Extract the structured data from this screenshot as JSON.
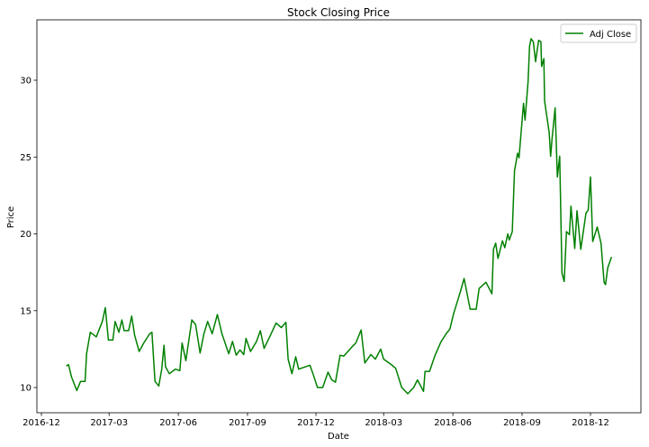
{
  "chart_data": {
    "type": "line",
    "title": "Stock Closing Price",
    "xlabel": "Date",
    "ylabel": "Price",
    "xlim": [
      "2016-11-25",
      "2019-02-06"
    ],
    "ylim": [
      8.36,
      33.93
    ],
    "grid": false,
    "legend_placement": "top-right",
    "x_ticks": [
      {
        "value": "2016-12-01",
        "label": "2016-12"
      },
      {
        "value": "2017-03-01",
        "label": "2017-03"
      },
      {
        "value": "2017-06-01",
        "label": "2017-06"
      },
      {
        "value": "2017-09-01",
        "label": "2017-09"
      },
      {
        "value": "2017-12-01",
        "label": "2017-12"
      },
      {
        "value": "2018-03-01",
        "label": "2018-03"
      },
      {
        "value": "2018-06-01",
        "label": "2018-06"
      },
      {
        "value": "2018-09-01",
        "label": "2018-09"
      },
      {
        "value": "2018-12-01",
        "label": "2018-12"
      }
    ],
    "y_ticks": [
      {
        "value": 10,
        "label": "10"
      },
      {
        "value": 15,
        "label": "15"
      },
      {
        "value": 20,
        "label": "20"
      },
      {
        "value": 25,
        "label": "25"
      },
      {
        "value": 30,
        "label": "30"
      }
    ],
    "series": [
      {
        "name": "Adj Close",
        "color": "#008000",
        "x": [
          "2017-01-03",
          "2017-01-06",
          "2017-01-10",
          "2017-01-17",
          "2017-01-22",
          "2017-01-28",
          "2017-01-30",
          "2017-02-04",
          "2017-02-12",
          "2017-02-20",
          "2017-02-24",
          "2017-02-28",
          "2017-03-06",
          "2017-03-09",
          "2017-03-14",
          "2017-03-18",
          "2017-03-21",
          "2017-03-27",
          "2017-03-31",
          "2017-04-04",
          "2017-04-10",
          "2017-04-16",
          "2017-04-24",
          "2017-04-27",
          "2017-05-01",
          "2017-05-06",
          "2017-05-10",
          "2017-05-13",
          "2017-05-15",
          "2017-05-20",
          "2017-05-28",
          "2017-06-03",
          "2017-06-06",
          "2017-06-11",
          "2017-06-19",
          "2017-06-24",
          "2017-06-30",
          "2017-07-05",
          "2017-07-10",
          "2017-07-16",
          "2017-07-23",
          "2017-07-29",
          "2017-08-07",
          "2017-08-12",
          "2017-08-17",
          "2017-08-22",
          "2017-08-27",
          "2017-08-30",
          "2017-09-05",
          "2017-09-13",
          "2017-09-18",
          "2017-09-23",
          "2017-10-01",
          "2017-10-09",
          "2017-10-16",
          "2017-10-22",
          "2017-10-25",
          "2017-10-30",
          "2017-11-04",
          "2017-11-08",
          "2017-11-23",
          "2017-11-27",
          "2017-12-03",
          "2017-12-10",
          "2017-12-17",
          "2017-12-22",
          "2017-12-27",
          "2018-01-02",
          "2018-01-07",
          "2018-01-17",
          "2018-01-23",
          "2018-01-30",
          "2018-02-04",
          "2018-02-12",
          "2018-02-18",
          "2018-02-25",
          "2018-03-01",
          "2018-03-11",
          "2018-03-17",
          "2018-03-25",
          "2018-04-02",
          "2018-04-10",
          "2018-04-15",
          "2018-04-23",
          "2018-04-25",
          "2018-05-01",
          "2018-05-08",
          "2018-05-16",
          "2018-05-23",
          "2018-05-28",
          "2018-06-02",
          "2018-06-11",
          "2018-06-16",
          "2018-06-24",
          "2018-07-02",
          "2018-07-06",
          "2018-07-15",
          "2018-07-23",
          "2018-07-25",
          "2018-07-28",
          "2018-07-31",
          "2018-08-06",
          "2018-08-09",
          "2018-08-13",
          "2018-08-15",
          "2018-08-19",
          "2018-08-22",
          "2018-08-26",
          "2018-08-28",
          "2018-09-03",
          "2018-09-05",
          "2018-09-09",
          "2018-09-11",
          "2018-09-13",
          "2018-09-16",
          "2018-09-19",
          "2018-09-23",
          "2018-09-26",
          "2018-09-27",
          "2018-09-30",
          "2018-10-01",
          "2018-10-07",
          "2018-10-09",
          "2018-10-11",
          "2018-10-15",
          "2018-10-18",
          "2018-10-21",
          "2018-10-24",
          "2018-10-27",
          "2018-10-30",
          "2018-11-03",
          "2018-11-05",
          "2018-11-10",
          "2018-11-13",
          "2018-11-18",
          "2018-11-25",
          "2018-11-28",
          "2018-12-01",
          "2018-12-04",
          "2018-12-10",
          "2018-12-15",
          "2018-12-19",
          "2018-12-21",
          "2018-12-24",
          "2018-12-29"
        ],
        "y": [
          11.4,
          11.5,
          10.7,
          9.8,
          10.4,
          10.4,
          12.2,
          13.6,
          13.3,
          14.3,
          15.2,
          13.1,
          13.1,
          14.3,
          13.6,
          14.4,
          13.7,
          13.7,
          14.65,
          13.4,
          12.35,
          12.9,
          13.5,
          13.6,
          10.4,
          10.1,
          11.2,
          12.75,
          11.35,
          10.9,
          11.2,
          11.1,
          12.9,
          11.75,
          14.4,
          14.1,
          12.25,
          13.5,
          14.3,
          13.5,
          14.75,
          13.5,
          12.2,
          13.0,
          12.1,
          12.45,
          12.15,
          13.2,
          12.35,
          13.0,
          13.7,
          12.55,
          13.35,
          14.2,
          13.9,
          14.25,
          11.85,
          10.9,
          12.0,
          11.2,
          11.45,
          10.9,
          10.0,
          10.0,
          11.0,
          10.5,
          10.35,
          12.1,
          12.05,
          12.6,
          12.9,
          13.75,
          11.6,
          12.15,
          11.85,
          12.5,
          11.85,
          11.5,
          11.25,
          10.0,
          9.6,
          10.0,
          10.5,
          9.75,
          11.05,
          11.05,
          12.05,
          12.95,
          13.5,
          13.8,
          14.8,
          16.25,
          17.1,
          15.1,
          15.1,
          16.45,
          16.85,
          16.1,
          19.0,
          19.4,
          18.4,
          19.55,
          19.1,
          20.0,
          19.6,
          20.15,
          24.1,
          25.25,
          24.95,
          28.5,
          27.4,
          29.95,
          32.2,
          32.7,
          32.5,
          31.2,
          32.6,
          32.5,
          30.9,
          31.4,
          28.65,
          26.6,
          25.05,
          26.25,
          28.2,
          23.7,
          25.05,
          17.45,
          16.9,
          20.15,
          19.95,
          21.8,
          19.05,
          21.5,
          19.0,
          21.35,
          21.55,
          23.7,
          19.5,
          20.45,
          19.4,
          16.85,
          16.7,
          17.8,
          18.5
        ]
      }
    ]
  }
}
